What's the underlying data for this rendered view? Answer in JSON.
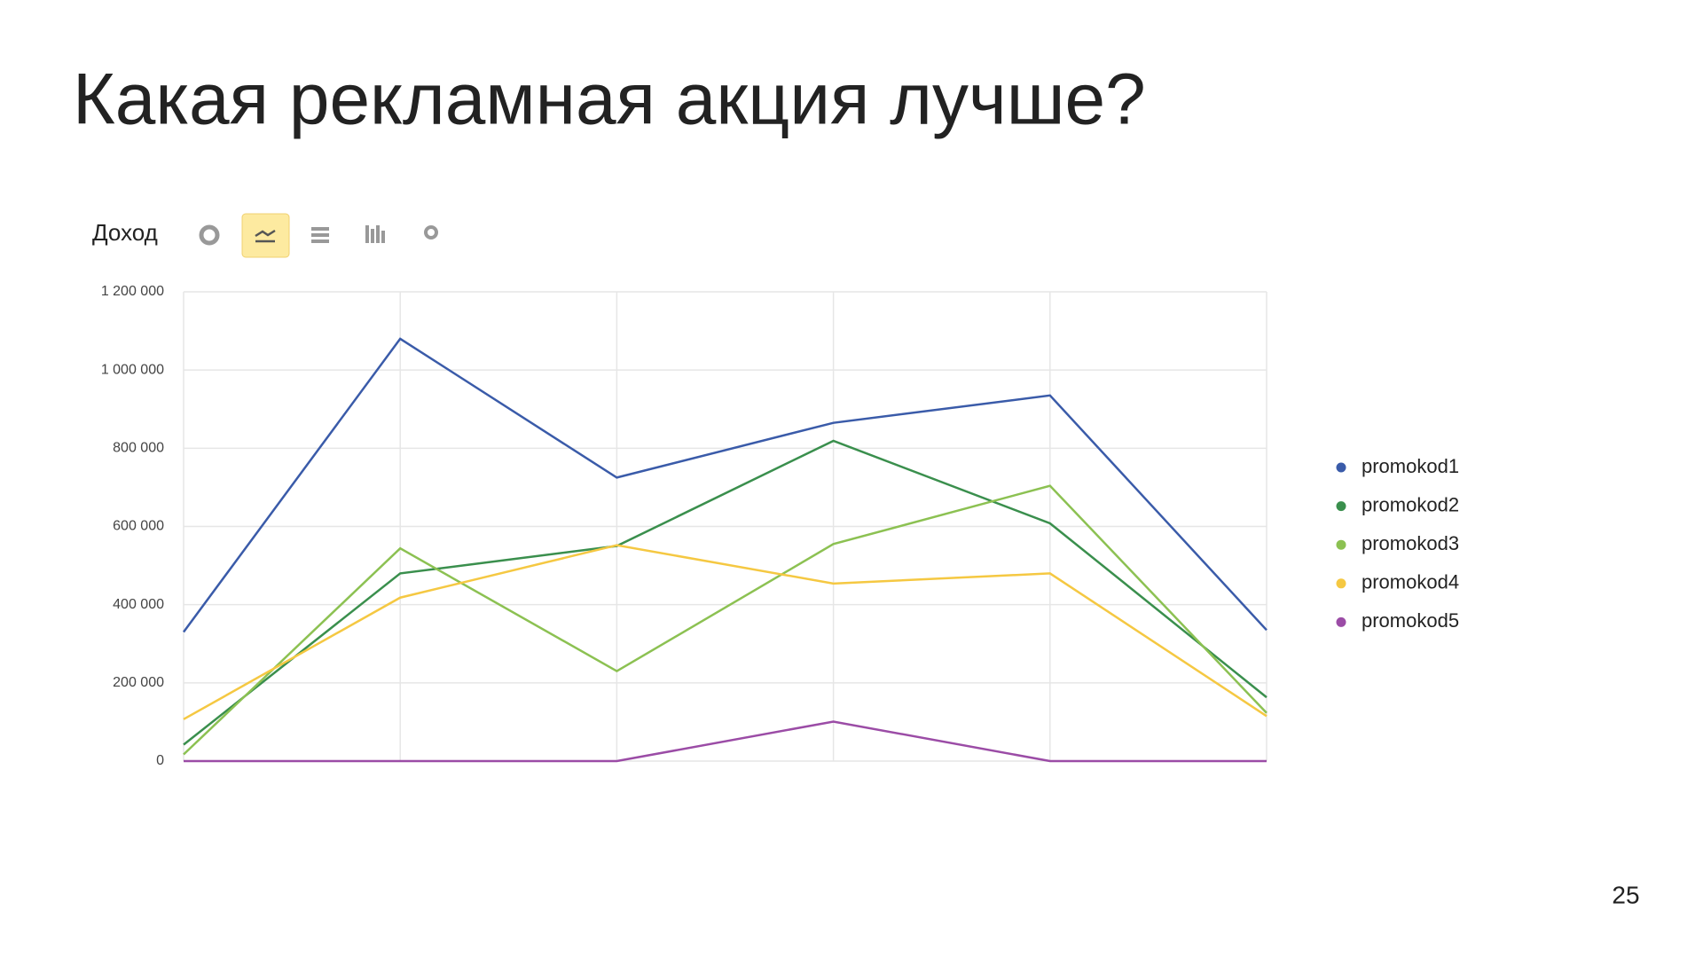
{
  "slide": {
    "title": "Какая рекламная акция лучше?",
    "page_number": "25"
  },
  "chart_data": {
    "type": "line",
    "title": "Доход",
    "categories": [
      null,
      null,
      null,
      null,
      null,
      null
    ],
    "series": [
      {
        "name": "promokod1",
        "color": "#3a5ba9",
        "values": [
          330000,
          1080000,
          725000,
          865000,
          935000,
          335000
        ]
      },
      {
        "name": "promokod2",
        "color": "#3a8f4d",
        "values": [
          42000,
          480000,
          550000,
          819000,
          608000,
          163000
        ]
      },
      {
        "name": "promokod3",
        "color": "#8cc152",
        "values": [
          17000,
          544000,
          230000,
          555000,
          704000,
          123000
        ]
      },
      {
        "name": "promokod4",
        "color": "#f5c842",
        "values": [
          107000,
          418000,
          552000,
          454000,
          480000,
          115000
        ]
      },
      {
        "name": "promokod5",
        "color": "#9b4ca6",
        "values": [
          0,
          0,
          0,
          101000,
          0,
          0
        ]
      }
    ],
    "ylim": [
      0,
      1200000
    ],
    "yticks": [
      0,
      {
        "value": 200000,
        "label": "200 000"
      },
      {
        "value": 400000,
        "label": "400 000"
      },
      {
        "value": 600000,
        "label": "600 000"
      },
      {
        "value": 800000,
        "label": "800 000"
      },
      {
        "value": 1000000,
        "label": "1 000 000"
      },
      {
        "value": 1200000,
        "label": "1 200 000"
      }
    ],
    "grid": true,
    "legend": "right"
  }
}
